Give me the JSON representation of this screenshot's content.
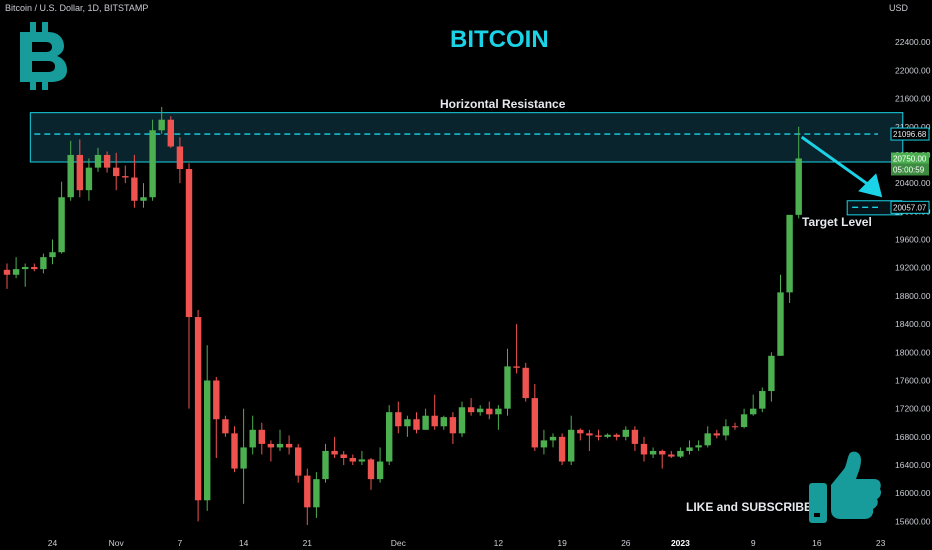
{
  "header": {
    "symbol": "Bitcoin / U.S. Dollar, 1D, BITSTAMP",
    "currency": "USD"
  },
  "title": "BITCOIN",
  "labels": {
    "resistance": "Horizontal Resistance",
    "target": "Target Level",
    "cta": "LIKE and SUBSCRIBE"
  },
  "price_tags": {
    "resistance": "21096.68",
    "current_price": "20750.00",
    "countdown": "05:00:59",
    "target": "20057.07"
  },
  "colors": {
    "up": "#26a69a",
    "up_green": "#4caf50",
    "down": "#ef5350",
    "accent": "#1ad3e6",
    "resistance_box": "#0c2a36"
  },
  "icons": [
    "bitcoin-logo-icon",
    "thumbs-up-icon",
    "arrow-down-right-icon"
  ],
  "chart_data": {
    "type": "candlestick",
    "y_axis": {
      "range": [
        15450,
        22800
      ],
      "ticks": [
        22400,
        22000,
        21600,
        21200,
        20800,
        20400,
        20000,
        19600,
        19200,
        18800,
        18400,
        18000,
        17600,
        17200,
        16800,
        16400,
        16000,
        15600
      ],
      "tick_labels": [
        "22400.00",
        "22000.00",
        "21600.00",
        "21200.00",
        "20800.00",
        "20400.00",
        "20000.00",
        "19600.00",
        "19200.00",
        "18800.00",
        "18400.00",
        "18000.00",
        "17600.00",
        "17200.00",
        "16800.00",
        "16400.00",
        "16000.00",
        "15600.00"
      ]
    },
    "x_axis": {
      "start_date": "2022-10-19",
      "tick_dates": [
        "2022-10-24",
        "2022-10-31",
        "2022-11-07",
        "2022-11-14",
        "2022-11-21",
        "2022-12-01",
        "2022-12-12",
        "2022-12-19",
        "2022-12-26",
        "2023-01-01",
        "2023-01-09",
        "2023-01-16",
        "2023-01-23"
      ],
      "tick_labels": [
        "24",
        "Nov",
        "7",
        "14",
        "21",
        "Dec",
        "12",
        "19",
        "26",
        "2023",
        "9",
        "16",
        "23"
      ]
    },
    "resistance_zone": {
      "low": 20700,
      "high": 21400,
      "line": 21096.68,
      "start_date": "2022-10-22",
      "end_date": "2023-01-25"
    },
    "target_zone": {
      "low": 19950,
      "high": 20150,
      "line": 20057.07,
      "start_date": "2023-01-19",
      "end_date": "2023-01-25"
    },
    "candles": [
      {
        "d": "2022-10-19",
        "o": 19170,
        "h": 19260,
        "l": 18900,
        "c": 19100
      },
      {
        "d": "2022-10-20",
        "o": 19100,
        "h": 19350,
        "l": 19050,
        "c": 19180
      },
      {
        "d": "2022-10-21",
        "o": 19180,
        "h": 19260,
        "l": 18930,
        "c": 19210
      },
      {
        "d": "2022-10-22",
        "o": 19210,
        "h": 19260,
        "l": 19150,
        "c": 19180
      },
      {
        "d": "2022-10-23",
        "o": 19180,
        "h": 19400,
        "l": 19120,
        "c": 19350
      },
      {
        "d": "2022-10-24",
        "o": 19350,
        "h": 19600,
        "l": 19250,
        "c": 19420
      },
      {
        "d": "2022-10-25",
        "o": 19420,
        "h": 20420,
        "l": 19400,
        "c": 20200
      },
      {
        "d": "2022-10-26",
        "o": 20200,
        "h": 21000,
        "l": 20150,
        "c": 20800
      },
      {
        "d": "2022-10-27",
        "o": 20800,
        "h": 21020,
        "l": 20200,
        "c": 20300
      },
      {
        "d": "2022-10-28",
        "o": 20300,
        "h": 20750,
        "l": 20150,
        "c": 20620
      },
      {
        "d": "2022-10-29",
        "o": 20620,
        "h": 20900,
        "l": 20560,
        "c": 20800
      },
      {
        "d": "2022-10-30",
        "o": 20800,
        "h": 20850,
        "l": 20550,
        "c": 20620
      },
      {
        "d": "2022-10-31",
        "o": 20620,
        "h": 20830,
        "l": 20300,
        "c": 20500
      },
      {
        "d": "2022-11-01",
        "o": 20500,
        "h": 20650,
        "l": 20400,
        "c": 20480
      },
      {
        "d": "2022-11-02",
        "o": 20480,
        "h": 20800,
        "l": 20050,
        "c": 20150
      },
      {
        "d": "2022-11-03",
        "o": 20150,
        "h": 20400,
        "l": 20050,
        "c": 20200
      },
      {
        "d": "2022-11-04",
        "o": 20200,
        "h": 21300,
        "l": 20150,
        "c": 21150
      },
      {
        "d": "2022-11-05",
        "o": 21150,
        "h": 21480,
        "l": 21100,
        "c": 21300
      },
      {
        "d": "2022-11-06",
        "o": 21300,
        "h": 21350,
        "l": 20900,
        "c": 20920
      },
      {
        "d": "2022-11-07",
        "o": 20920,
        "h": 21050,
        "l": 20400,
        "c": 20600
      },
      {
        "d": "2022-11-08",
        "o": 20600,
        "h": 20680,
        "l": 17200,
        "c": 18500
      },
      {
        "d": "2022-11-09",
        "o": 18500,
        "h": 18600,
        "l": 15600,
        "c": 15900
      },
      {
        "d": "2022-11-10",
        "o": 15900,
        "h": 18100,
        "l": 15750,
        "c": 17600
      },
      {
        "d": "2022-11-11",
        "o": 17600,
        "h": 17650,
        "l": 16500,
        "c": 17050
      },
      {
        "d": "2022-11-12",
        "o": 17050,
        "h": 17100,
        "l": 16800,
        "c": 16850
      },
      {
        "d": "2022-11-13",
        "o": 16850,
        "h": 16950,
        "l": 16300,
        "c": 16350
      },
      {
        "d": "2022-11-14",
        "o": 16350,
        "h": 17200,
        "l": 15850,
        "c": 16650
      },
      {
        "d": "2022-11-15",
        "o": 16650,
        "h": 17100,
        "l": 16550,
        "c": 16900
      },
      {
        "d": "2022-11-16",
        "o": 16900,
        "h": 17000,
        "l": 16550,
        "c": 16700
      },
      {
        "d": "2022-11-17",
        "o": 16700,
        "h": 16750,
        "l": 16450,
        "c": 16650
      },
      {
        "d": "2022-11-18",
        "o": 16650,
        "h": 16900,
        "l": 16600,
        "c": 16700
      },
      {
        "d": "2022-11-19",
        "o": 16700,
        "h": 16820,
        "l": 16550,
        "c": 16650
      },
      {
        "d": "2022-11-20",
        "o": 16650,
        "h": 16700,
        "l": 16150,
        "c": 16250
      },
      {
        "d": "2022-11-21",
        "o": 16250,
        "h": 16350,
        "l": 15550,
        "c": 15800
      },
      {
        "d": "2022-11-22",
        "o": 15800,
        "h": 16300,
        "l": 15650,
        "c": 16200
      },
      {
        "d": "2022-11-23",
        "o": 16200,
        "h": 16700,
        "l": 16150,
        "c": 16600
      },
      {
        "d": "2022-11-24",
        "o": 16600,
        "h": 16800,
        "l": 16500,
        "c": 16550
      },
      {
        "d": "2022-11-25",
        "o": 16550,
        "h": 16600,
        "l": 16400,
        "c": 16500
      },
      {
        "d": "2022-11-26",
        "o": 16500,
        "h": 16550,
        "l": 16400,
        "c": 16450
      },
      {
        "d": "2022-11-27",
        "o": 16450,
        "h": 16600,
        "l": 16400,
        "c": 16480
      },
      {
        "d": "2022-11-28",
        "o": 16480,
        "h": 16500,
        "l": 16050,
        "c": 16200
      },
      {
        "d": "2022-11-29",
        "o": 16200,
        "h": 16650,
        "l": 16150,
        "c": 16450
      },
      {
        "d": "2022-11-30",
        "o": 16450,
        "h": 17250,
        "l": 16400,
        "c": 17150
      },
      {
        "d": "2022-12-01",
        "o": 17150,
        "h": 17300,
        "l": 16850,
        "c": 16950
      },
      {
        "d": "2022-12-02",
        "o": 16950,
        "h": 17100,
        "l": 16800,
        "c": 17050
      },
      {
        "d": "2022-12-03",
        "o": 17050,
        "h": 17150,
        "l": 16850,
        "c": 16900
      },
      {
        "d": "2022-12-04",
        "o": 16900,
        "h": 17200,
        "l": 16900,
        "c": 17100
      },
      {
        "d": "2022-12-05",
        "o": 17100,
        "h": 17400,
        "l": 16900,
        "c": 16950
      },
      {
        "d": "2022-12-06",
        "o": 16950,
        "h": 17100,
        "l": 16900,
        "c": 17080
      },
      {
        "d": "2022-12-07",
        "o": 17080,
        "h": 17150,
        "l": 16700,
        "c": 16850
      },
      {
        "d": "2022-12-08",
        "o": 16850,
        "h": 17300,
        "l": 16800,
        "c": 17220
      },
      {
        "d": "2022-12-09",
        "o": 17220,
        "h": 17350,
        "l": 17100,
        "c": 17150
      },
      {
        "d": "2022-12-10",
        "o": 17150,
        "h": 17250,
        "l": 17100,
        "c": 17200
      },
      {
        "d": "2022-12-11",
        "o": 17200,
        "h": 17300,
        "l": 17050,
        "c": 17120
      },
      {
        "d": "2022-12-12",
        "o": 17120,
        "h": 17250,
        "l": 16900,
        "c": 17200
      },
      {
        "d": "2022-12-13",
        "o": 17200,
        "h": 18050,
        "l": 17100,
        "c": 17800
      },
      {
        "d": "2022-12-14",
        "o": 17800,
        "h": 18400,
        "l": 17700,
        "c": 17780
      },
      {
        "d": "2022-12-15",
        "o": 17780,
        "h": 17850,
        "l": 17300,
        "c": 17350
      },
      {
        "d": "2022-12-16",
        "o": 17350,
        "h": 17550,
        "l": 16600,
        "c": 16650
      },
      {
        "d": "2022-12-17",
        "o": 16650,
        "h": 16900,
        "l": 16550,
        "c": 16750
      },
      {
        "d": "2022-12-18",
        "o": 16750,
        "h": 16850,
        "l": 16650,
        "c": 16800
      },
      {
        "d": "2022-12-19",
        "o": 16800,
        "h": 16850,
        "l": 16400,
        "c": 16450
      },
      {
        "d": "2022-12-20",
        "o": 16450,
        "h": 17100,
        "l": 16400,
        "c": 16900
      },
      {
        "d": "2022-12-21",
        "o": 16900,
        "h": 16920,
        "l": 16750,
        "c": 16850
      },
      {
        "d": "2022-12-22",
        "o": 16850,
        "h": 16900,
        "l": 16600,
        "c": 16820
      },
      {
        "d": "2022-12-23",
        "o": 16820,
        "h": 16900,
        "l": 16750,
        "c": 16800
      },
      {
        "d": "2022-12-24",
        "o": 16800,
        "h": 16850,
        "l": 16780,
        "c": 16830
      },
      {
        "d": "2022-12-25",
        "o": 16830,
        "h": 16850,
        "l": 16750,
        "c": 16800
      },
      {
        "d": "2022-12-26",
        "o": 16800,
        "h": 16950,
        "l": 16750,
        "c": 16900
      },
      {
        "d": "2022-12-27",
        "o": 16900,
        "h": 16950,
        "l": 16600,
        "c": 16700
      },
      {
        "d": "2022-12-28",
        "o": 16700,
        "h": 16800,
        "l": 16450,
        "c": 16550
      },
      {
        "d": "2022-12-29",
        "o": 16550,
        "h": 16650,
        "l": 16500,
        "c": 16600
      },
      {
        "d": "2022-12-30",
        "o": 16600,
        "h": 16620,
        "l": 16350,
        "c": 16550
      },
      {
        "d": "2022-12-31",
        "o": 16550,
        "h": 16600,
        "l": 16500,
        "c": 16520
      },
      {
        "d": "2023-01-01",
        "o": 16520,
        "h": 16650,
        "l": 16500,
        "c": 16600
      },
      {
        "d": "2023-01-02",
        "o": 16600,
        "h": 16750,
        "l": 16550,
        "c": 16650
      },
      {
        "d": "2023-01-03",
        "o": 16650,
        "h": 16750,
        "l": 16600,
        "c": 16680
      },
      {
        "d": "2023-01-04",
        "o": 16680,
        "h": 16950,
        "l": 16650,
        "c": 16850
      },
      {
        "d": "2023-01-05",
        "o": 16850,
        "h": 16900,
        "l": 16780,
        "c": 16820
      },
      {
        "d": "2023-01-06",
        "o": 16820,
        "h": 17050,
        "l": 16750,
        "c": 16950
      },
      {
        "d": "2023-01-07",
        "o": 16950,
        "h": 17000,
        "l": 16900,
        "c": 16940
      },
      {
        "d": "2023-01-08",
        "o": 16940,
        "h": 17200,
        "l": 16920,
        "c": 17120
      },
      {
        "d": "2023-01-09",
        "o": 17120,
        "h": 17400,
        "l": 17100,
        "c": 17200
      },
      {
        "d": "2023-01-10",
        "o": 17200,
        "h": 17500,
        "l": 17150,
        "c": 17450
      },
      {
        "d": "2023-01-11",
        "o": 17450,
        "h": 18000,
        "l": 17300,
        "c": 17950
      },
      {
        "d": "2023-01-12",
        "o": 17950,
        "h": 19100,
        "l": 17950,
        "c": 18850
      },
      {
        "d": "2023-01-13",
        "o": 18850,
        "h": 19950,
        "l": 18700,
        "c": 19950
      },
      {
        "d": "2023-01-14",
        "o": 19950,
        "h": 21200,
        "l": 19900,
        "c": 20750
      }
    ]
  }
}
